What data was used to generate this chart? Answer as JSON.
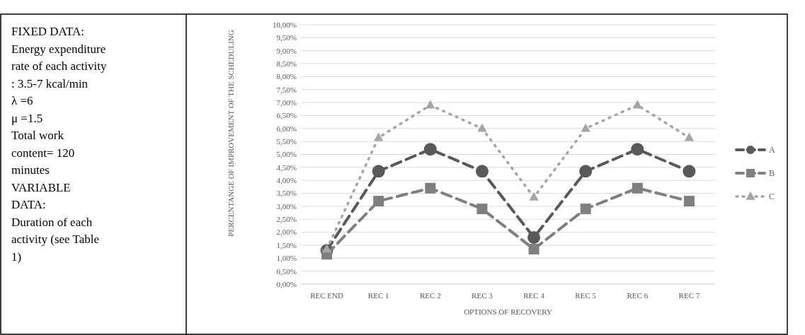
{
  "chart_data": {
    "type": "line",
    "xlabel": "OPTIONS OF RECOVERY",
    "ylabel": "PERCENTANGE OF IMPROVEMENT OF THE SCHEDULING",
    "categories": [
      "REC END",
      "REC 1",
      "REC 2",
      "REC 3",
      "REC 4",
      "REC 5",
      "REC 6",
      "REC 7"
    ],
    "series": [
      {
        "name": "A",
        "color": "#595959",
        "marker": "circle",
        "line_style": "dashed",
        "values": [
          1.3,
          4.35,
          5.2,
          4.35,
          1.8,
          4.35,
          5.2,
          4.35
        ]
      },
      {
        "name": "B",
        "color": "#7f7f7f",
        "marker": "square",
        "line_style": "dashed",
        "values": [
          1.15,
          3.2,
          3.7,
          2.9,
          1.35,
          2.9,
          3.7,
          3.2
        ]
      },
      {
        "name": "C",
        "color": "#a5a5a5",
        "marker": "triangle",
        "line_style": "dotted",
        "values": [
          1.35,
          5.65,
          6.9,
          6.0,
          3.35,
          6.0,
          6.9,
          5.65
        ]
      }
    ],
    "ylim": [
      0,
      10
    ],
    "yticks": [
      {
        "value": 0,
        "label": "0,00%"
      },
      {
        "value": 0.5,
        "label": "0,50%"
      },
      {
        "value": 1,
        "label": "1,00%"
      },
      {
        "value": 1.5,
        "label": "1,50%"
      },
      {
        "value": 2,
        "label": "2,00%"
      },
      {
        "value": 2.5,
        "label": "2,50%"
      },
      {
        "value": 3,
        "label": "3,00%"
      },
      {
        "value": 3.5,
        "label": "3,50%"
      },
      {
        "value": 4,
        "label": "4,00%"
      },
      {
        "value": 4.5,
        "label": "4,50%"
      },
      {
        "value": 5,
        "label": "5,00%"
      },
      {
        "value": 5.5,
        "label": "5,50%"
      },
      {
        "value": 6,
        "label": "6,00%"
      },
      {
        "value": 6.5,
        "label": "6,50%"
      },
      {
        "value": 7,
        "label": "7,00%"
      },
      {
        "value": 7.5,
        "label": "7,50%"
      },
      {
        "value": 8,
        "label": "8,00%"
      },
      {
        "value": 8.5,
        "label": "8,50%"
      },
      {
        "value": 9,
        "label": "9,00%"
      },
      {
        "value": 9.5,
        "label": "9,50%"
      },
      {
        "value": 10,
        "label": "10,00%"
      }
    ],
    "grid": "y",
    "legend": "right",
    "annotations": [
      "FIXED DATA:",
      "Energy expenditure",
      "rate of each activity",
      ": 3.5-7 kcal/min",
      "λ =6",
      "μ =1.5",
      "Total work",
      "content= 120",
      "minutes",
      "VARIABLE",
      "DATA:",
      "Duration of each",
      "activity (see Table",
      "1)"
    ]
  }
}
